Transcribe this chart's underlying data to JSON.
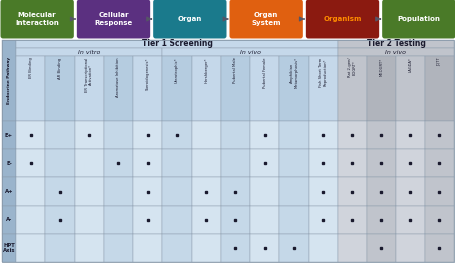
{
  "top_boxes": [
    {
      "label": "Molecular\nInteraction",
      "color": "#4a7a28"
    },
    {
      "label": "Cellular\nResponse",
      "color": "#5b3080"
    },
    {
      "label": "Organ",
      "color": "#1a7a8c"
    },
    {
      "label": "Organ\nSystem",
      "color": "#e06010"
    },
    {
      "label": "Organism",
      "color": "#8b1a10"
    },
    {
      "label": "Population",
      "color": "#4a7a28"
    }
  ],
  "organism_text_color": "#ff8c00",
  "other_text_color": "#ffffff",
  "tier1_header_color": "#c5d8ea",
  "tier2_header_color": "#c0c4cc",
  "invitro_color": "#c5d8ea",
  "invivo_t1_color": "#c5d8ea",
  "invivo_t2_color": "#c0c4cc",
  "col_header_t1_even": "#c5d8ea",
  "col_header_t1_odd": "#b5cce0",
  "col_header_t2_even": "#c0c4cc",
  "col_header_t2_odd": "#b0b4bc",
  "left_col_color": "#9ab4cc",
  "data_t1_even": "#d5e4f0",
  "data_t1_odd": "#c5d8e8",
  "data_t2_even": "#d0d4dc",
  "data_t2_odd": "#c0c4cc",
  "columns": [
    "ER Binding",
    "AR Binding",
    "ER Transcriptional\nActivation*",
    "Aromatase Inhibition",
    "Steroidogenesis*",
    "Uterotrophic*",
    "Hershberger*",
    "Pubertal Male",
    "Pubertal Female",
    "Amphibian\nMetamorphosis*",
    "Fish Short Term\nReproduction*",
    "Rat 2-gen/\nEOGRT*",
    "MEOGRT*",
    "LAGDA*",
    "JQTT"
  ],
  "rows": [
    "E+",
    "E-",
    "A+",
    "A-",
    "HPT\nAxis"
  ],
  "dots": {
    "E+": [
      1,
      0,
      1,
      0,
      1,
      1,
      0,
      0,
      1,
      0,
      1,
      1,
      1,
      1,
      1
    ],
    "E-": [
      1,
      0,
      0,
      1,
      1,
      0,
      0,
      0,
      1,
      0,
      1,
      1,
      1,
      1,
      1
    ],
    "A+": [
      0,
      1,
      0,
      0,
      1,
      0,
      1,
      1,
      0,
      0,
      1,
      1,
      1,
      1,
      1
    ],
    "A-": [
      0,
      1,
      0,
      0,
      1,
      0,
      1,
      1,
      0,
      0,
      1,
      1,
      1,
      1,
      1
    ],
    "HPT\nAxis": [
      0,
      0,
      0,
      0,
      0,
      0,
      0,
      1,
      1,
      1,
      0,
      0,
      1,
      0,
      1
    ]
  },
  "dot_color": "#1a1a2e",
  "border_color": "#8899aa",
  "grid_color": "#9aaebc"
}
